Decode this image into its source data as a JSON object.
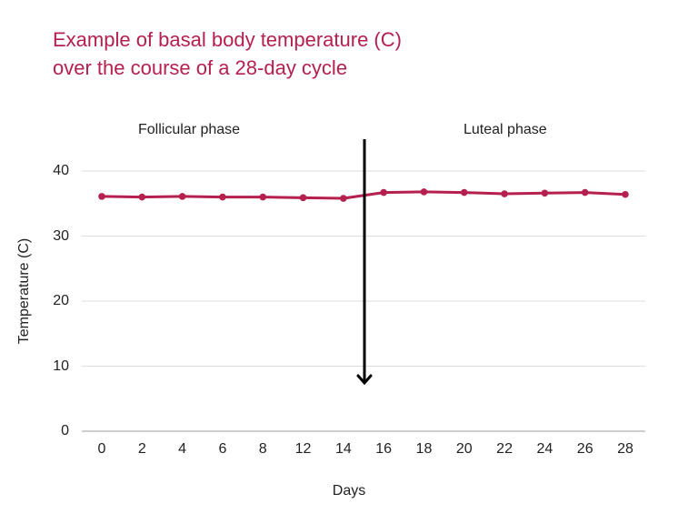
{
  "chart_data": {
    "type": "line",
    "title": "Example of basal body temperature (C) over the course of a 28-day cycle",
    "title_lines": [
      "Example of basal body temperature (C)",
      "over the course of a 28-day cycle"
    ],
    "xlabel": "Days",
    "ylabel": "Temperature (C)",
    "categories": [
      "0",
      "2",
      "4",
      "6",
      "8",
      "12",
      "14",
      "16",
      "18",
      "20",
      "22",
      "24",
      "26",
      "28"
    ],
    "series": [
      {
        "name": "Basal body temperature",
        "color": "#b5204f",
        "values": [
          36.1,
          36.0,
          36.1,
          36.0,
          36.0,
          35.9,
          35.8,
          36.7,
          36.8,
          36.7,
          36.5,
          36.6,
          36.7,
          36.4
        ]
      }
    ],
    "yticks": [
      "0",
      "10",
      "20",
      "30",
      "40"
    ],
    "ylim": [
      0,
      40
    ],
    "grid": true,
    "legend": null,
    "annotations": [
      {
        "text": "Follicular phase",
        "position": "left-top"
      },
      {
        "text": "Luteal phase",
        "position": "right-top"
      },
      {
        "type": "arrow",
        "direction": "down",
        "x_between": [
          "14",
          "16"
        ],
        "color": "#000000"
      }
    ]
  },
  "labels": {
    "follicular": "Follicular phase",
    "luteal": "Luteal phase"
  }
}
